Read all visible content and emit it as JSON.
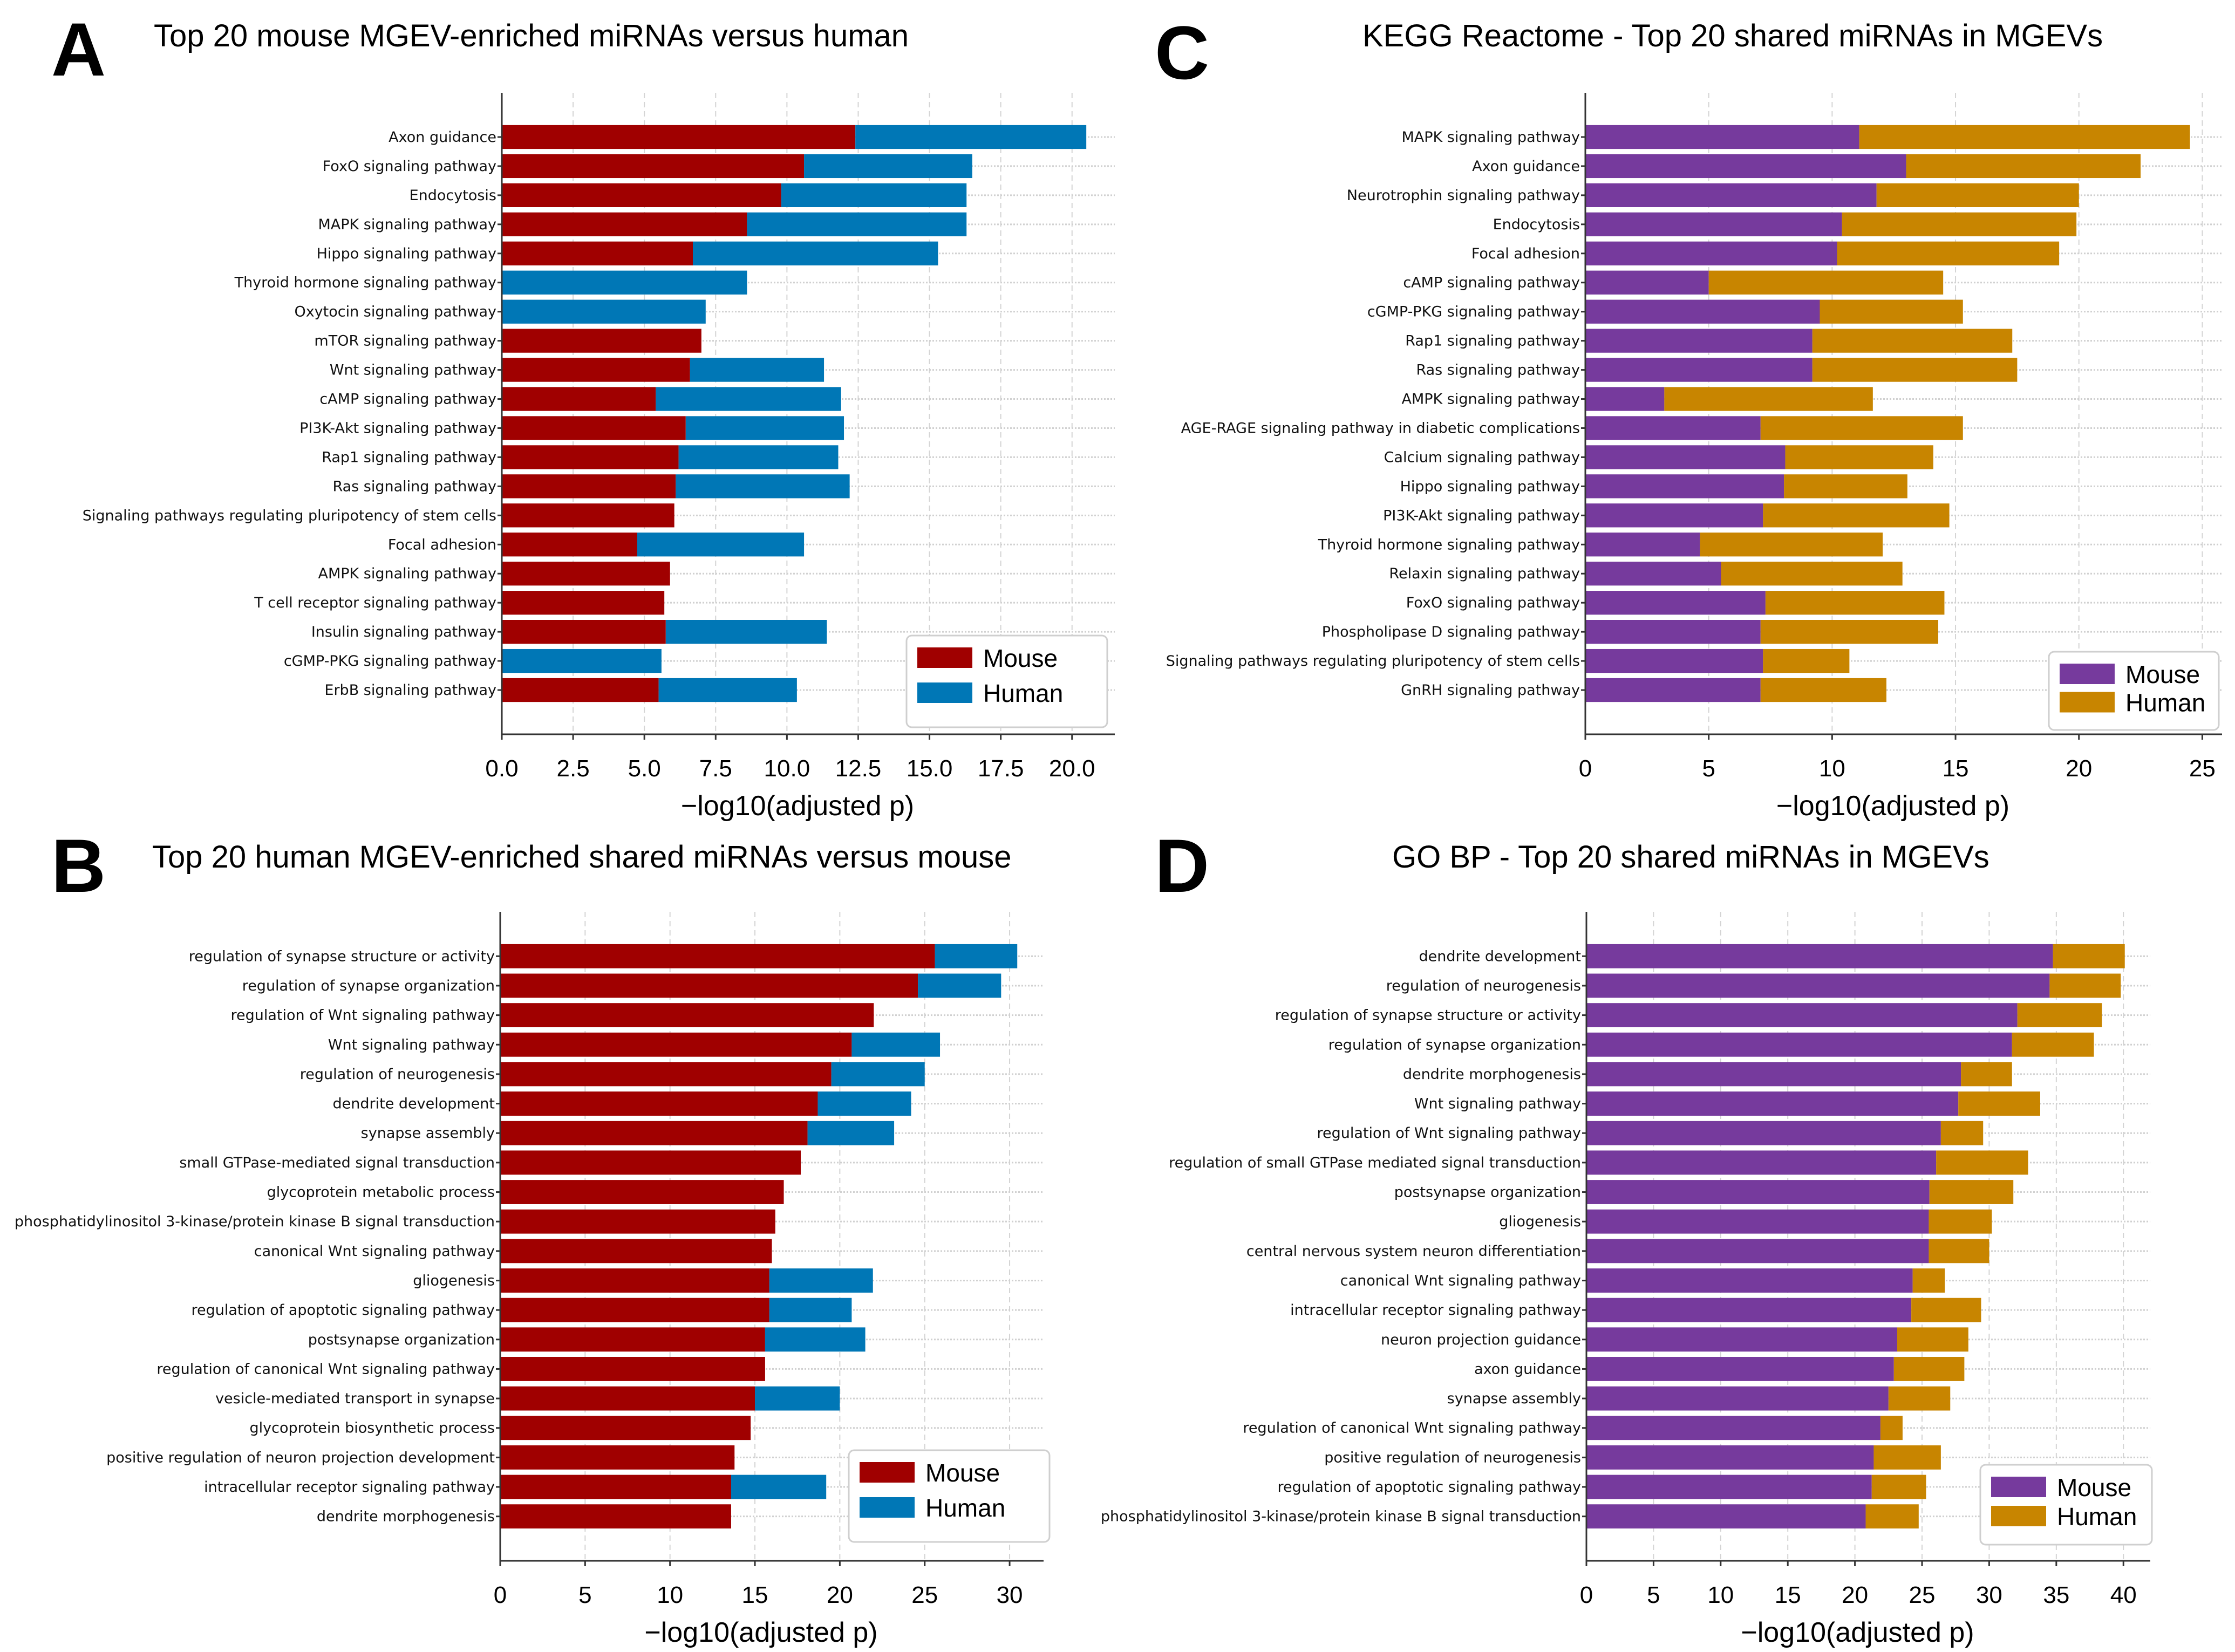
{
  "panels": {
    "A": {
      "letter": "A",
      "title": "Top 20 mouse MGEV-enriched miRNAs versus human"
    },
    "B": {
      "letter": "B",
      "title": "Top 20 human MGEV-enriched shared miRNAs versus mouse"
    },
    "C": {
      "letter": "C",
      "title": "KEGG Reactome - Top 20 shared miRNAs in MGEVs"
    },
    "D": {
      "letter": "D",
      "title": "GO BP - Top 20 shared miRNAs in MGEVs"
    }
  },
  "chart_data": [
    {
      "id": "A",
      "type": "bar",
      "orientation": "horizontal",
      "stacked": true,
      "title": "Top 20 mouse MGEV-enriched miRNAs versus human",
      "xlabel": "−log10(adjusted p)",
      "ylabel": "",
      "xlim": [
        0,
        21.5
      ],
      "xticks": [
        0,
        2.5,
        5,
        7.5,
        10,
        12.5,
        15,
        17.5,
        20
      ],
      "xtick_labels": [
        "0.0",
        "2.5",
        "5.0",
        "7.5",
        "10.0",
        "12.5",
        "15.0",
        "17.5",
        "20.0"
      ],
      "grid": true,
      "legend": "bottom-right",
      "categories": [
        "Axon guidance",
        "FoxO signaling pathway",
        "Endocytosis",
        "MAPK signaling pathway",
        "Hippo signaling pathway",
        "Thyroid hormone signaling pathway",
        "Oxytocin signaling pathway",
        "mTOR signaling pathway",
        "Wnt signaling pathway",
        "cAMP signaling pathway",
        "PI3K-Akt signaling pathway",
        "Rap1 signaling pathway",
        "Ras signaling pathway",
        "Signaling pathways regulating pluripotency of stem cells",
        "Focal adhesion",
        "AMPK signaling pathway",
        "T cell receptor signaling pathway",
        "Insulin signaling pathway",
        "cGMP-PKG signaling pathway",
        "ErbB signaling pathway"
      ],
      "series": [
        {
          "name": "Mouse",
          "color": "#a00000",
          "values": [
            12.4,
            10.6,
            9.8,
            8.6,
            6.7,
            0,
            0,
            7.0,
            6.6,
            5.4,
            6.45,
            6.2,
            6.1,
            6.05,
            4.75,
            5.9,
            5.7,
            5.75,
            0,
            5.5
          ]
        },
        {
          "name": "Human",
          "color": "#0077b6",
          "values": [
            8.1,
            5.9,
            6.5,
            7.7,
            8.6,
            8.6,
            7.15,
            0,
            4.7,
            6.5,
            5.55,
            5.6,
            6.1,
            0,
            5.85,
            0,
            0,
            5.65,
            5.6,
            4.85
          ]
        }
      ]
    },
    {
      "id": "B",
      "type": "bar",
      "orientation": "horizontal",
      "stacked": true,
      "title": "Top 20 human MGEV-enriched shared miRNAs versus mouse",
      "xlabel": "−log10(adjusted p)",
      "ylabel": "",
      "xlim": [
        0,
        32
      ],
      "xticks": [
        0,
        5,
        10,
        15,
        20,
        25,
        30
      ],
      "xtick_labels": [
        "0",
        "5",
        "10",
        "15",
        "20",
        "25",
        "30"
      ],
      "grid": true,
      "legend": "bottom-right",
      "categories": [
        "regulation of synapse structure or activity",
        "regulation of synapse organization",
        "regulation of Wnt signaling pathway",
        "Wnt signaling pathway",
        "regulation of neurogenesis",
        "dendrite development",
        "synapse assembly",
        "small GTPase-mediated signal transduction",
        "glycoprotein metabolic process",
        "phosphatidylinositol 3-kinase/protein kinase B signal transduction",
        "canonical Wnt signaling pathway",
        "gliogenesis",
        "regulation of apoptotic signaling pathway",
        "postsynapse organization",
        "regulation of canonical Wnt signaling pathway",
        "vesicle-mediated transport in synapse",
        "glycoprotein biosynthetic process",
        "positive regulation of neuron projection development",
        "intracellular receptor signaling pathway",
        "dendrite morphogenesis"
      ],
      "series": [
        {
          "name": "Mouse",
          "color": "#a00000",
          "values": [
            25.6,
            24.6,
            22.0,
            20.7,
            19.5,
            18.7,
            18.1,
            17.7,
            16.7,
            16.2,
            16.0,
            15.85,
            15.85,
            15.6,
            15.6,
            15.0,
            14.75,
            13.8,
            13.6,
            13.6
          ]
        },
        {
          "name": "Human",
          "color": "#0077b6",
          "values": [
            4.85,
            4.9,
            0,
            5.2,
            5.5,
            5.5,
            5.1,
            0,
            0,
            0,
            0,
            6.1,
            4.85,
            5.9,
            0,
            5.0,
            0,
            0,
            5.6,
            0
          ]
        }
      ]
    },
    {
      "id": "C",
      "type": "bar",
      "orientation": "horizontal",
      "stacked": true,
      "title": "KEGG Reactome - Top 20 shared miRNAs in MGEVs",
      "xlabel": "−log10(adjusted p)",
      "ylabel": "",
      "xlim": [
        0,
        25.8
      ],
      "xticks": [
        0,
        5,
        10,
        15,
        20,
        25
      ],
      "xtick_labels": [
        "0",
        "5",
        "10",
        "15",
        "20",
        "25"
      ],
      "grid": true,
      "legend": "bottom-right",
      "categories": [
        "MAPK signaling pathway",
        "Axon guidance",
        "Neurotrophin signaling pathway",
        "Endocytosis",
        "Focal adhesion",
        "cAMP signaling pathway",
        "cGMP-PKG signaling pathway",
        "Rap1 signaling pathway",
        "Ras signaling pathway",
        "AMPK signaling pathway",
        "AGE-RAGE signaling pathway in diabetic complications",
        "Calcium signaling pathway",
        "Hippo signaling pathway",
        "PI3K-Akt signaling pathway",
        "Thyroid hormone signaling pathway",
        "Relaxin signaling pathway",
        "FoxO signaling pathway",
        "Phospholipase D signaling pathway",
        "Signaling pathways regulating pluripotency of stem cells",
        "GnRH signaling pathway"
      ],
      "series": [
        {
          "name": "Mouse",
          "color": "#763a9d",
          "values": [
            11.1,
            13.0,
            11.8,
            10.4,
            10.2,
            5.0,
            9.5,
            9.2,
            9.2,
            3.2,
            7.1,
            8.1,
            8.05,
            7.2,
            4.65,
            5.5,
            7.3,
            7.1,
            7.2,
            7.1
          ]
        },
        {
          "name": "Human",
          "color": "#c88500",
          "values": [
            13.4,
            9.5,
            8.2,
            9.5,
            9.0,
            9.5,
            5.8,
            8.1,
            8.3,
            8.45,
            8.2,
            6.0,
            5.0,
            7.55,
            7.4,
            7.35,
            7.25,
            7.2,
            3.5,
            5.1
          ]
        }
      ]
    },
    {
      "id": "D",
      "type": "bar",
      "orientation": "horizontal",
      "stacked": true,
      "title": "GO BP - Top 20 shared miRNAs in MGEVs",
      "xlabel": "−log10(adjusted p)",
      "ylabel": "",
      "xlim": [
        0,
        42
      ],
      "xticks": [
        0,
        5,
        10,
        15,
        20,
        25,
        30,
        35,
        40
      ],
      "xtick_labels": [
        "0",
        "5",
        "10",
        "15",
        "20",
        "25",
        "30",
        "35",
        "40"
      ],
      "grid": true,
      "legend": "bottom-right",
      "categories": [
        "dendrite development",
        "regulation of neurogenesis",
        "regulation of synapse structure or activity",
        "regulation of synapse organization",
        "dendrite morphogenesis",
        "Wnt signaling pathway",
        "regulation of Wnt signaling pathway",
        "regulation of small GTPase mediated signal transduction",
        "postsynapse organization",
        "gliogenesis",
        "central nervous system neuron differentiation",
        "canonical Wnt signaling pathway",
        "intracellular receptor signaling pathway",
        "neuron projection guidance",
        "axon guidance",
        "synapse assembly",
        "regulation of canonical Wnt signaling pathway",
        "positive regulation of neurogenesis",
        "regulation of apoptotic signaling pathway",
        "phosphatidylinositol 3-kinase/protein kinase B signal transduction"
      ],
      "series": [
        {
          "name": "Mouse",
          "color": "#763a9d",
          "values": [
            34.75,
            34.5,
            32.1,
            31.7,
            27.9,
            27.7,
            26.4,
            26.05,
            25.55,
            25.5,
            25.5,
            24.3,
            24.2,
            23.15,
            22.9,
            22.5,
            21.9,
            21.4,
            21.25,
            20.8
          ]
        },
        {
          "name": "Human",
          "color": "#c88500",
          "values": [
            5.35,
            5.3,
            6.3,
            6.1,
            3.8,
            6.1,
            3.15,
            6.85,
            6.25,
            4.7,
            4.5,
            2.4,
            5.2,
            5.3,
            5.25,
            4.6,
            1.65,
            5.0,
            4.05,
            3.95
          ]
        }
      ]
    }
  ]
}
